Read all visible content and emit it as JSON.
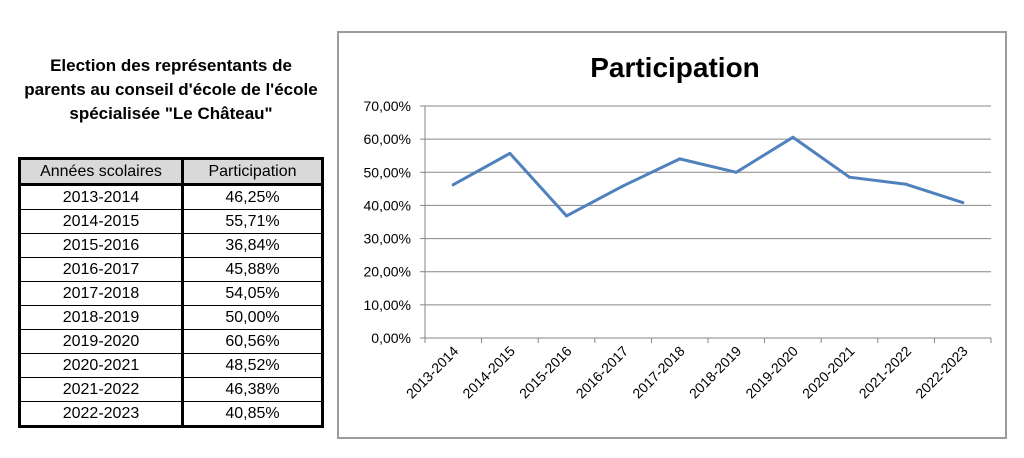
{
  "left_title": {
    "line1": "Election des représentants de",
    "line2": "parents au conseil d'école de l'école",
    "line3": "spécialisée \"Le Château\""
  },
  "table": {
    "headers": [
      "Années scolaires",
      "Participation"
    ],
    "rows": [
      [
        "2013-2014",
        "46,25%"
      ],
      [
        "2014-2015",
        "55,71%"
      ],
      [
        "2015-2016",
        "36,84%"
      ],
      [
        "2016-2017",
        "45,88%"
      ],
      [
        "2017-2018",
        "54,05%"
      ],
      [
        "2018-2019",
        "50,00%"
      ],
      [
        "2019-2020",
        "60,56%"
      ],
      [
        "2020-2021",
        "48,52%"
      ],
      [
        "2021-2022",
        "46,38%"
      ],
      [
        "2022-2023",
        "40,85%"
      ]
    ]
  },
  "chart_data": {
    "type": "line",
    "title": "Participation",
    "xlabel": "",
    "ylabel": "",
    "categories": [
      "2013-2014",
      "2014-2015",
      "2015-2016",
      "2016-2017",
      "2017-2018",
      "2018-2019",
      "2019-2020",
      "2020-2021",
      "2021-2022",
      "2022-2023"
    ],
    "series": [
      {
        "values": [
          46.25,
          55.71,
          36.84,
          45.88,
          54.05,
          50.0,
          60.56,
          48.52,
          46.38,
          40.85
        ]
      }
    ],
    "ylim": [
      0,
      70
    ],
    "yticks": [
      "0,00%",
      "10,00%",
      "20,00%",
      "30,00%",
      "40,00%",
      "50,00%",
      "60,00%",
      "70,00%"
    ],
    "grid": true,
    "legend": "none",
    "line_color": "#4f81bd",
    "grid_color": "#868686"
  }
}
